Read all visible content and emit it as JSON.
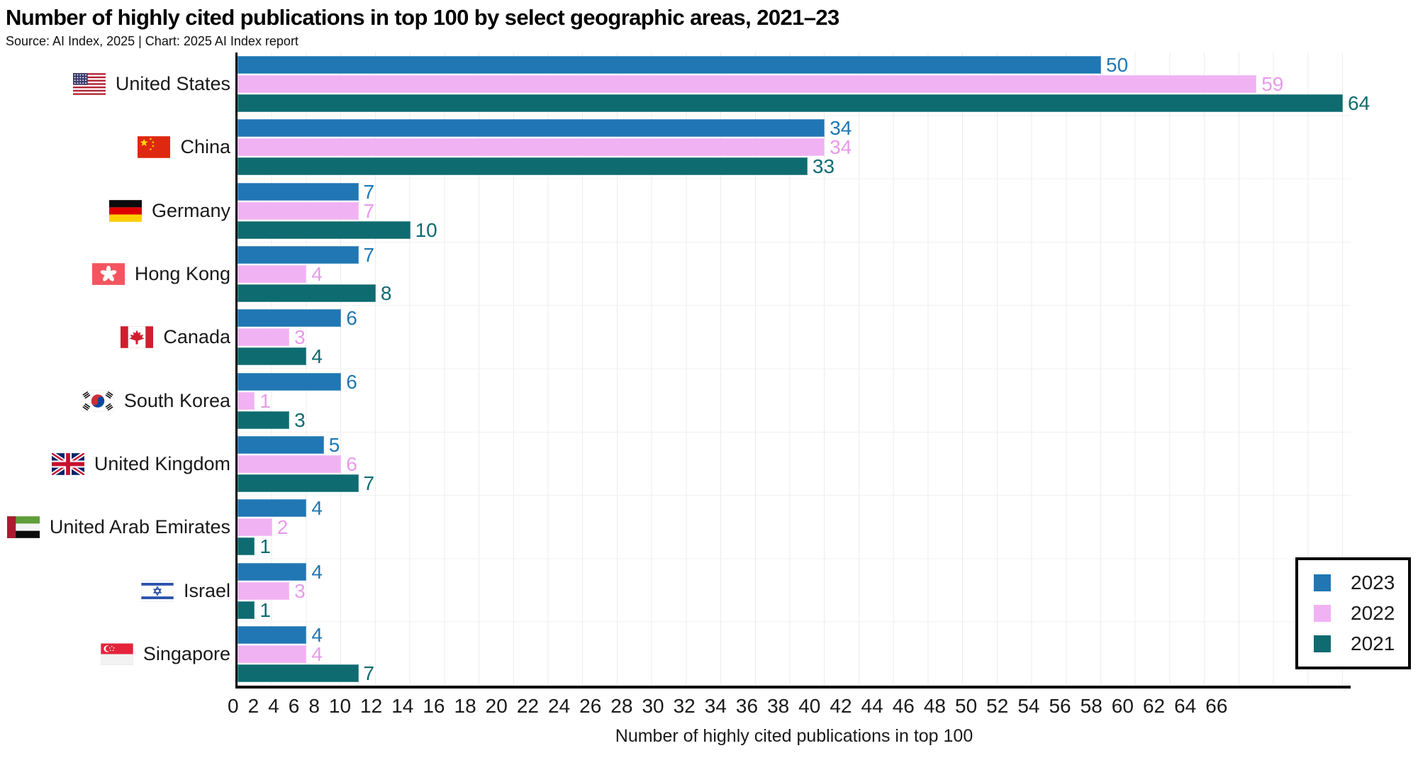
{
  "title": "Number of highly cited publications in top 100 by select geographic areas, 2021–23",
  "source": "Source: AI Index, 2025 | Chart: 2025 AI Index report",
  "chart_data": {
    "type": "bar",
    "orientation": "horizontal",
    "title": "Number of highly cited publications in top 100 by select geographic areas, 2021–23",
    "xlabel": "Number of highly cited publications in top 100",
    "grid": true,
    "legend_position": "bottom-right",
    "xlim": [
      0,
      64.45
    ],
    "x_ticks": [
      0,
      2,
      4,
      6,
      8,
      10,
      12,
      14,
      16,
      18,
      20,
      22,
      24,
      26,
      28,
      30,
      32,
      34,
      36,
      38,
      40,
      42,
      44,
      46,
      48,
      50,
      52,
      54,
      56,
      58,
      60,
      62,
      64,
      66
    ],
    "categories": [
      "United States",
      "China",
      "Germany",
      "Hong Kong",
      "Canada",
      "South Korea",
      "United Kingdom",
      "United Arab Emirates",
      "Israel",
      "Singapore"
    ],
    "flags": [
      "us",
      "cn",
      "de",
      "hk",
      "ca",
      "kr",
      "gb",
      "ae",
      "il",
      "sg"
    ],
    "series": [
      {
        "name": "2023",
        "color": "#2077b4",
        "label_color": "#2077b4",
        "values": [
          50,
          34,
          7,
          7,
          6,
          6,
          5,
          4,
          4,
          4
        ]
      },
      {
        "name": "2022",
        "color": "#f1b2f3",
        "label_color": "#e89aeb",
        "values": [
          59,
          34,
          7,
          4,
          3,
          1,
          6,
          2,
          3,
          4
        ]
      },
      {
        "name": "2021",
        "color": "#0e6b70",
        "label_color": "#0e6b70",
        "values": [
          64,
          33,
          10,
          8,
          4,
          3,
          7,
          1,
          1,
          7
        ]
      }
    ]
  }
}
